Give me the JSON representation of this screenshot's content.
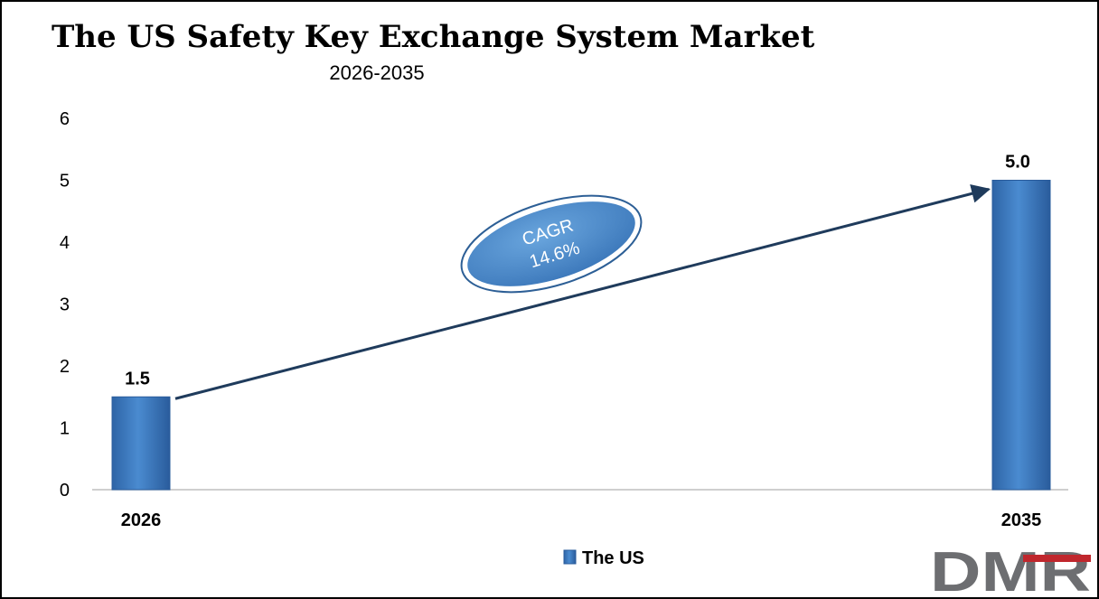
{
  "chart_data": {
    "type": "bar",
    "title": "The US Safety Key Exchange System Market",
    "subtitle": "2026-2035",
    "categories": [
      "2026",
      "2035"
    ],
    "series": [
      {
        "name": "The US",
        "values": [
          1.5,
          5.0
        ],
        "labels": [
          "1.5",
          "5.0"
        ],
        "color": "#3a78bf"
      }
    ],
    "ylim": [
      0,
      6
    ],
    "yticks": [
      0,
      1,
      2,
      3,
      4,
      5,
      6
    ],
    "grid": false,
    "legend_position": "bottom-center",
    "annotation": {
      "line1": "CAGR",
      "line2": "14.6%"
    }
  },
  "logo": {
    "text": "DMR",
    "colors": [
      "#6d6e71",
      "#c0272d"
    ]
  }
}
